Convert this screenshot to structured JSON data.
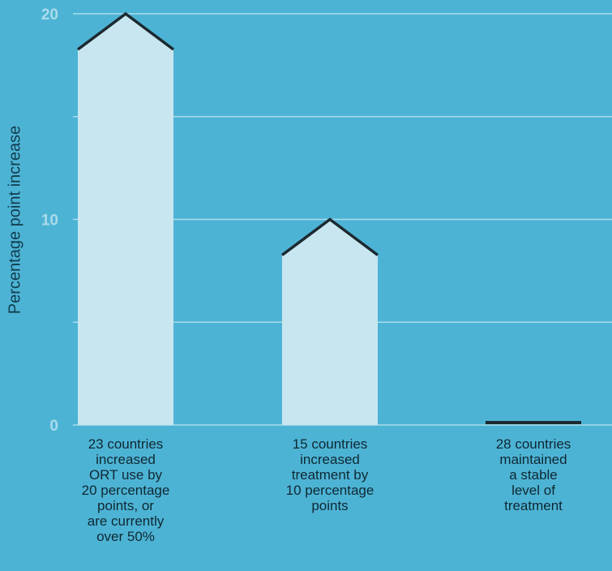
{
  "chart_data": {
    "type": "bar",
    "title": "",
    "xlabel": "",
    "ylabel": "Percentage point increase",
    "ylim": [
      0,
      20
    ],
    "yticks": [
      0,
      5,
      10,
      15,
      20
    ],
    "ytick_labels": [
      "0",
      "",
      "10",
      "",
      "20"
    ],
    "grid": true,
    "categories": [
      "23 countries\nincreased\nORT use by\n20 percentage\npoints, or\nare currently\nover 50%",
      "15 countries\nincreased\ntreatment by\n10 percentage\npoints",
      "28 countries\nmaintained\na stable\nlevel of\ntreatment"
    ],
    "values": [
      20,
      10,
      0
    ],
    "colors": {
      "background": "#4db3d4",
      "bar": "#c8e6ef",
      "gridline": "#a9dbea",
      "outline": "#1c2a30",
      "tick_text": "#a9dbea"
    }
  }
}
